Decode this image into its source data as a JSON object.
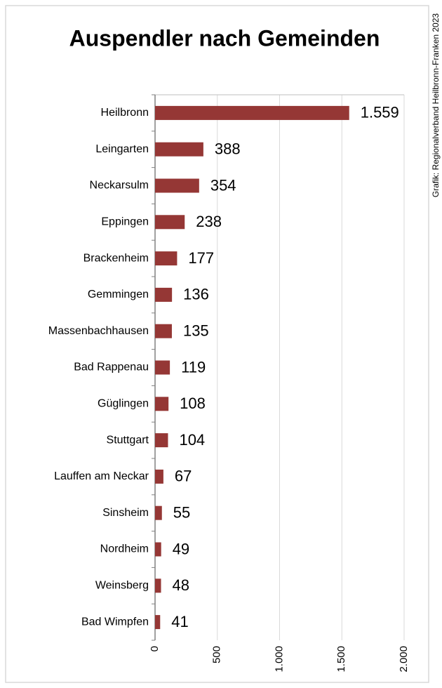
{
  "chart_data": {
    "type": "hbar",
    "title": "Auspendler nach Gemeinden",
    "source": "Grafik: Regionalverband Heilbronn-Franken 2023",
    "categories": [
      "Heilbronn",
      "Leingarten",
      "Neckarsulm",
      "Eppingen",
      "Brackenheim",
      "Gemmingen",
      "Massenbachhausen",
      "Bad Rappenau",
      "Güglingen",
      "Stuttgart",
      "Lauffen am Neckar",
      "Sinsheim",
      "Nordheim",
      "Weinsberg",
      "Bad Wimpfen"
    ],
    "values": [
      1559,
      388,
      354,
      238,
      177,
      136,
      135,
      119,
      108,
      104,
      67,
      55,
      49,
      48,
      41
    ],
    "value_labels": [
      "1.559",
      "388",
      "354",
      "238",
      "177",
      "136",
      "135",
      "119",
      "108",
      "104",
      "67",
      "55",
      "49",
      "48",
      "41"
    ],
    "color": "#953735",
    "xlim": [
      0,
      2000
    ],
    "xticks": [
      0,
      500,
      {
        "value": 1000,
        "label": "1.000"
      },
      {
        "value": 1500,
        "label": "1.500"
      },
      {
        "value": 2000,
        "label": "2.000"
      }
    ],
    "grid": true
  }
}
